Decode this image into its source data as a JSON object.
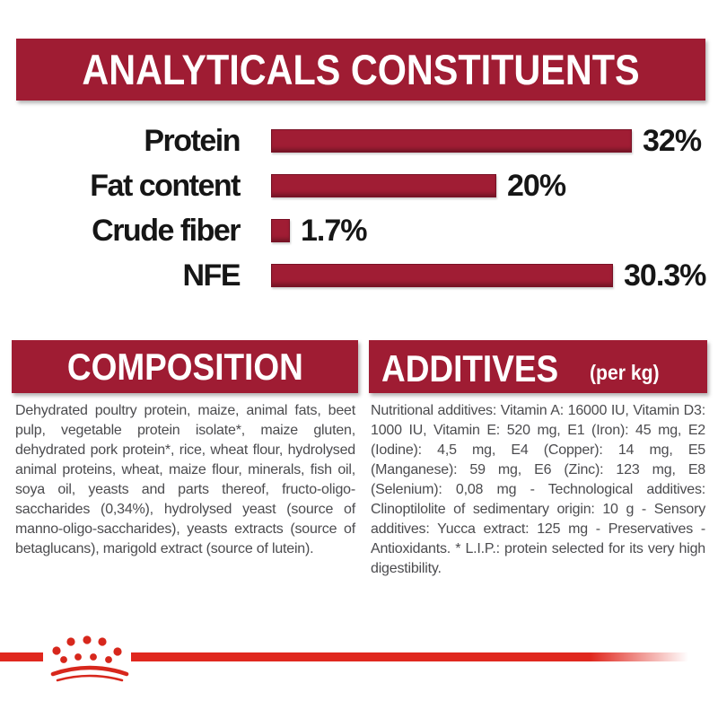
{
  "colors": {
    "maroon": "#9f1c33",
    "bar_fill": "#a01d34",
    "bright_red": "#e0281e",
    "heading_text": "#ffffff",
    "label_text": "#161616",
    "body_text": "#4b4b4e",
    "background": "#ffffff"
  },
  "header": {
    "title": "ANALYTICALS CONSTITUENTS"
  },
  "chart_data": {
    "type": "bar",
    "orientation": "horizontal",
    "title": "ANALYTICALS CONSTITUENTS",
    "categories": [
      "Protein",
      "Fat content",
      "Crude fiber",
      "NFE"
    ],
    "values": [
      32,
      20,
      1.7,
      30.3
    ],
    "value_labels": [
      "32%",
      "20%",
      "1.7%",
      "30.3%"
    ],
    "xlim": [
      0,
      32
    ],
    "bar_color": "#a01d34",
    "grid": "off",
    "legend": "none"
  },
  "composition": {
    "title": "COMPOSITION",
    "body": "Dehydrated poultry protein, maize, animal fats, beet pulp, vegetable protein isolate*, maize gluten, dehydrated pork protein*, rice, wheat flour, hydrolysed animal proteins, wheat, maize flour, minerals, fish oil, soya oil, yeasts and parts thereof, fructo-oligo-saccharides (0,34%), hydrolysed yeast (source of manno-oligo-saccharides), yeasts extracts (source of betaglucans), marigold extract (source of lutein)."
  },
  "additives": {
    "title": "ADDITIVES",
    "title_suffix": "(per kg)",
    "body": "Nutritional additives: Vitamin A: 16000 IU, Vitamin D3: 1000 IU, Vitamin E: 520 mg, E1 (Iron): 45 mg, E2 (Iodine): 4,5 mg, E4 (Copper): 14 mg, E5 (Manganese): 59 mg, E6 (Zinc): 123 mg, E8 (Selenium): 0,08 mg - Technological additives: Clinoptilolite of sedimentary origin: 10 g - Sensory additives: Yucca extract: 125 mg - Preservatives - Antioxidants. * L.I.P.: protein selected for its very high digestibility."
  },
  "footer": {
    "logo": "royal-canin-crown"
  }
}
